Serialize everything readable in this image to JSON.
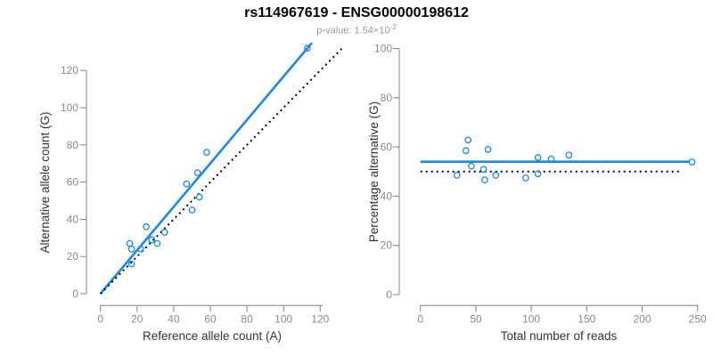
{
  "header": {
    "title": "rs114967619 - ENSG00000198612",
    "subtitle_label": "p-value: ",
    "pvalue_base": "1.54×10",
    "pvalue_exponent": "-2"
  },
  "colors": {
    "accent_blue": "#1E87E0",
    "dotted_black": "#000000",
    "axis_gray": "#808080",
    "tick_label_gray": "#8A8A8A",
    "axis_title_gray": "#333333",
    "title_black": "#000000",
    "subtitle_gray": "#9A9A9A"
  },
  "chart_data": [
    {
      "type": "scatter",
      "xlabel": "Reference allele count (A)",
      "ylabel": "Alternative allele count (G)",
      "xticks": [
        0,
        20,
        40,
        60,
        80,
        100,
        120
      ],
      "yticks": [
        0,
        20,
        40,
        60,
        80,
        100,
        120
      ],
      "xlim": [
        0,
        132
      ],
      "ylim": [
        0,
        135
      ],
      "grid": false,
      "points": [
        [
          113,
          132
        ],
        [
          58,
          76
        ],
        [
          53,
          65
        ],
        [
          47,
          59
        ],
        [
          54,
          52
        ],
        [
          50,
          45
        ],
        [
          35,
          33
        ],
        [
          31,
          27
        ],
        [
          28,
          29
        ],
        [
          25,
          36
        ],
        [
          22,
          24
        ],
        [
          17,
          24
        ],
        [
          16,
          27
        ],
        [
          17,
          16
        ]
      ],
      "lines": [
        {
          "name": "fit-line",
          "desc": "regression fit, slope ~1.17",
          "x1": 0,
          "y1": 0,
          "x2": 115.5,
          "y2": 134.9,
          "color": "#1E87E0",
          "width": 2.6,
          "dash": ""
        },
        {
          "name": "identity-line",
          "desc": "y = x reference",
          "x1": 0,
          "y1": 0,
          "x2": 132.5,
          "y2": 132.5,
          "color": "#000000",
          "width": 2,
          "dash": "2 4"
        }
      ]
    },
    {
      "type": "scatter",
      "xlabel": "Total number of reads",
      "ylabel": "Percentage alternative (G)",
      "xticks": [
        0,
        50,
        100,
        150,
        200,
        250
      ],
      "yticks": [
        0,
        20,
        40,
        60,
        80,
        100
      ],
      "xlim": [
        0,
        250
      ],
      "ylim": [
        0,
        100
      ],
      "grid": false,
      "points": [
        [
          245,
          53.9
        ],
        [
          134,
          56.7
        ],
        [
          118,
          55.1
        ],
        [
          106,
          55.7
        ],
        [
          106,
          49.1
        ],
        [
          95,
          47.4
        ],
        [
          68,
          48.5
        ],
        [
          61,
          59.0
        ],
        [
          58,
          46.6
        ],
        [
          57,
          50.9
        ],
        [
          46,
          52.2
        ],
        [
          43,
          62.8
        ],
        [
          41,
          58.5
        ],
        [
          33,
          48.5
        ]
      ],
      "lines": [
        {
          "name": "mean-line",
          "desc": "mean percentage ~54",
          "x1": 0,
          "y1": 54,
          "x2": 243,
          "y2": 54,
          "color": "#1E87E0",
          "width": 2.6,
          "dash": ""
        },
        {
          "name": "null-line",
          "desc": "50% reference",
          "x1": 0,
          "y1": 50,
          "x2": 234,
          "y2": 50,
          "color": "#000000",
          "width": 2,
          "dash": "2 4"
        }
      ]
    }
  ]
}
